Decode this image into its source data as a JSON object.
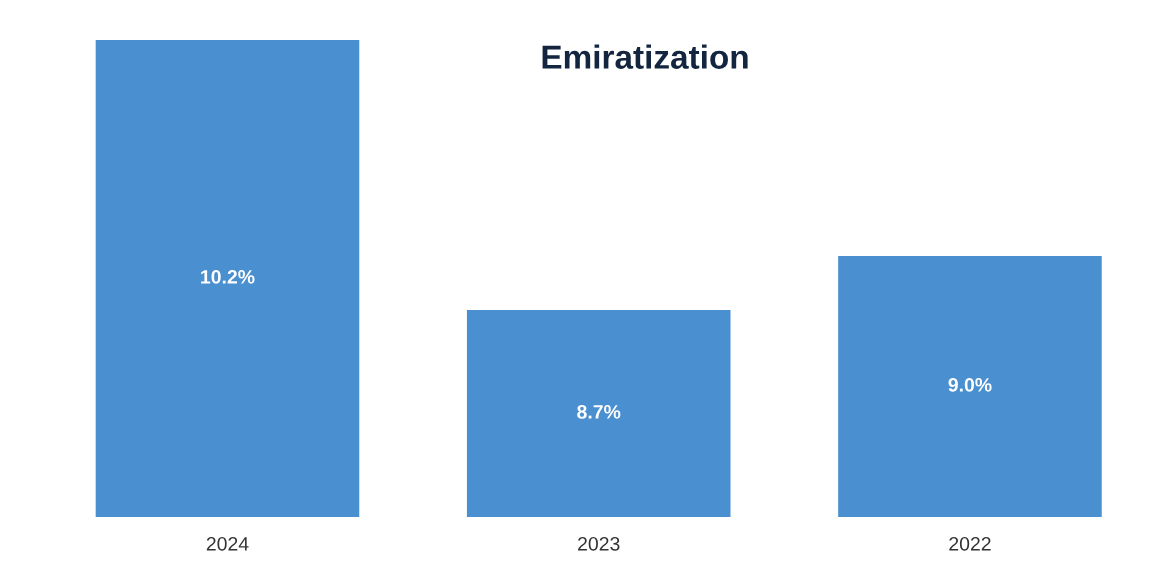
{
  "chart_data": {
    "type": "bar",
    "title": "Emiratization",
    "categories": [
      "2024",
      "2023",
      "2022"
    ],
    "values": [
      10.2,
      8.7,
      9.0
    ],
    "value_labels": [
      "10.2%",
      "8.7%",
      "9.0%"
    ],
    "color": "#4a8fcf",
    "ylim": [
      7.55,
      10.2
    ],
    "tick_labels": "x",
    "grid": false,
    "legend": false
  }
}
